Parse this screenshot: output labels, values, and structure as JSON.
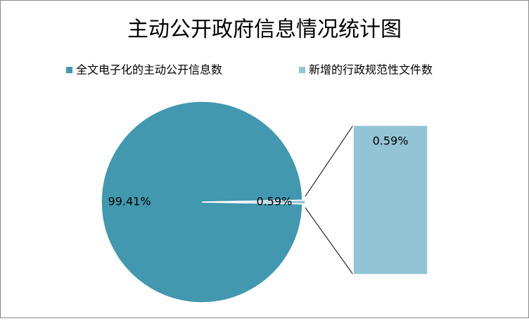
{
  "chart_data": {
    "type": "pie",
    "title": "主动公开政府信息情况统计图",
    "categories": [
      "全文电子化的主动公开信息数",
      "新增的行政规范性文件数"
    ],
    "values": [
      99.41,
      0.59
    ],
    "value_labels": [
      "99.41%",
      "0.59%"
    ],
    "colors": [
      "#4198af",
      "#93c4d6"
    ],
    "legend": "top"
  }
}
